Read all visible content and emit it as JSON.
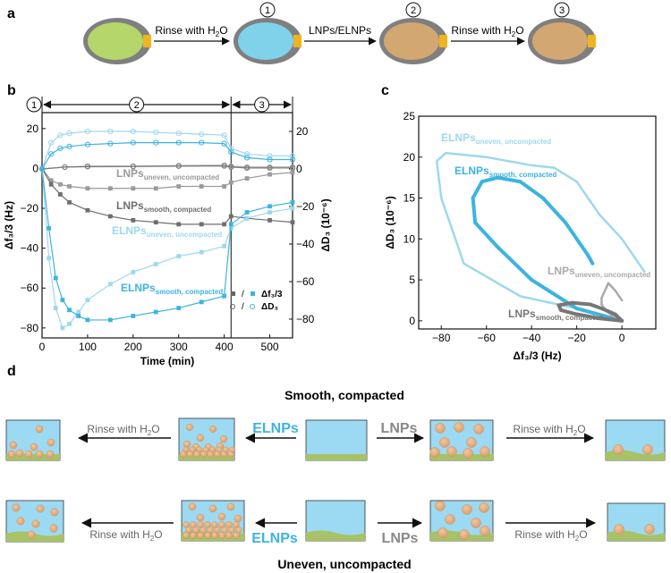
{
  "panels": {
    "a": "a",
    "b": "b",
    "c": "c",
    "d": "d"
  },
  "panel_a": {
    "steps": [
      {
        "label": "Rinse with H",
        "sub": "2",
        "tail": "O"
      },
      {
        "label": "LNPs/ELNPs",
        "sub": "",
        "tail": ""
      },
      {
        "label": "Rinse with H",
        "sub": "2",
        "tail": "O"
      }
    ],
    "markers": [
      "1",
      "2",
      "3"
    ]
  },
  "panel_d": {
    "title_top": "Smooth, compacted",
    "title_bottom": "Uneven, uncompacted",
    "rinse_main": "Rinse with H",
    "rinse_sub": "2",
    "rinse_tail": "O",
    "elnps": "ELNPs",
    "lnps": "LNPs"
  },
  "chart_data": [
    {
      "id": "b",
      "type": "line",
      "xlabel": "Time (min)",
      "ylabel_left": "Δf₃/3 (Hz)",
      "ylabel_right": "ΔD₃ (10⁻⁶)",
      "xlim": [
        0,
        550
      ],
      "ylim_left": [
        -85,
        28
      ],
      "ylim_right": [
        -90,
        30
      ],
      "xticks": [
        "0",
        "100",
        "200",
        "300",
        "400",
        "500"
      ],
      "yticks_left": [
        "20",
        "0",
        "−20",
        "−40",
        "−60",
        "−80"
      ],
      "yticks_right": [
        "20",
        "0",
        "−20",
        "−40",
        "−60",
        "−80"
      ],
      "stage_markers": [
        "1",
        "2",
        "3"
      ],
      "stage_bounds_min": [
        0,
        415,
        550
      ],
      "series": [
        {
          "name": "LNPs uneven, uncompacted Δf",
          "color": "#9a9a9a",
          "x": [
            0,
            20,
            40,
            60,
            100,
            150,
            200,
            250,
            300,
            350,
            400,
            415,
            450,
            500,
            550
          ],
          "y": [
            0,
            -6,
            -8,
            -9,
            -10,
            -10,
            -10,
            -10,
            -9,
            -9,
            -9,
            -7,
            -5,
            -3,
            -2
          ]
        },
        {
          "name": "LNPs smooth, compacted Δf",
          "color": "#6e6e6e",
          "x": [
            0,
            20,
            40,
            60,
            100,
            150,
            200,
            250,
            300,
            350,
            400,
            415,
            450,
            500,
            550
          ],
          "y": [
            0,
            -8,
            -13,
            -17,
            -21,
            -24,
            -26,
            -27,
            -28,
            -28,
            -28,
            -24,
            -25,
            -26,
            -27
          ]
        },
        {
          "name": "ELNPs uneven, uncompacted Δf",
          "color": "#9ed8ef",
          "x": [
            0,
            15,
            30,
            45,
            60,
            80,
            100,
            150,
            200,
            250,
            300,
            350,
            400,
            415,
            450,
            500,
            550
          ],
          "y": [
            0,
            -45,
            -70,
            -80,
            -78,
            -72,
            -66,
            -58,
            -52,
            -48,
            -44,
            -42,
            -39,
            -30,
            -25,
            -22,
            -20
          ]
        },
        {
          "name": "ELNPs smooth, compacted Δf",
          "color": "#3db3e0",
          "x": [
            0,
            15,
            30,
            45,
            60,
            80,
            100,
            150,
            200,
            250,
            300,
            350,
            400,
            415,
            450,
            500,
            550
          ],
          "y": [
            0,
            -30,
            -55,
            -66,
            -71,
            -74,
            -76,
            -76,
            -74,
            -72,
            -70,
            -67,
            -64,
            -28,
            -22,
            -19,
            -17
          ]
        },
        {
          "name": "LNPs uneven, uncompacted ΔD",
          "color": "#a8a8a8",
          "x": [
            0,
            50,
            100,
            200,
            300,
            400,
            415,
            450,
            500,
            550
          ],
          "y": [
            0,
            1,
            1.5,
            1.5,
            1.8,
            2,
            1.5,
            1,
            1,
            1
          ]
        },
        {
          "name": "LNPs smooth, compacted ΔD",
          "color": "#7a7a7a",
          "x": [
            0,
            50,
            100,
            200,
            300,
            400,
            415,
            450,
            500,
            550
          ],
          "y": [
            0,
            1,
            1.2,
            1.3,
            1.5,
            1.6,
            1,
            0.5,
            0.5,
            0.5
          ]
        },
        {
          "name": "ELNPs uneven, uncompacted ΔD",
          "color": "#9ed8ef",
          "x": [
            0,
            20,
            40,
            60,
            100,
            150,
            200,
            250,
            300,
            350,
            400,
            415,
            450,
            500,
            550
          ],
          "y": [
            0,
            14,
            18,
            19,
            20,
            20,
            20,
            19.5,
            19,
            18.5,
            18,
            11,
            8,
            7,
            7
          ]
        },
        {
          "name": "ELNPs smooth, compacted ΔD",
          "color": "#3db3e0",
          "x": [
            0,
            20,
            40,
            60,
            100,
            150,
            200,
            250,
            300,
            350,
            400,
            415,
            450,
            500,
            550
          ],
          "y": [
            0,
            8,
            11,
            12,
            13,
            13.5,
            14,
            14,
            14,
            14,
            13.5,
            9,
            6,
            5,
            5
          ]
        }
      ],
      "annotations": [
        {
          "main": "LNPs",
          "sub": "uneven, uncompacted"
        },
        {
          "main": "LNPs",
          "sub": "smooth, compacted"
        },
        {
          "main": "ELNPs",
          "sub": "uneven, uncompacted"
        },
        {
          "main": "ELNPs",
          "sub": "smooth, compacted"
        }
      ],
      "legend": [
        {
          "symbols": "■ / ■",
          "label": "Δf₃/3"
        },
        {
          "symbols": "○ / ○",
          "label": "ΔD₃"
        }
      ]
    },
    {
      "id": "c",
      "type": "scatter",
      "xlabel": "Δf₃/3 (Hz)",
      "ylabel": "ΔD₃ (10⁻⁶)",
      "xlim": [
        -90,
        15
      ],
      "ylim": [
        -1,
        25
      ],
      "xticks": [
        "−80",
        "−60",
        "−40",
        "−20",
        "0"
      ],
      "yticks": [
        "0",
        "5",
        "10",
        "15",
        "20",
        "25"
      ],
      "series": [
        {
          "name": "ELNPs uneven, uncompacted",
          "color": "#9ed8ef",
          "x": [
            0,
            -20,
            -45,
            -70,
            -80,
            -82,
            -78,
            -60,
            -40,
            -30,
            -20,
            -10,
            0,
            5,
            10
          ],
          "y": [
            0,
            1.5,
            3,
            7,
            15,
            19.5,
            20.5,
            20,
            19,
            18.7,
            17,
            13,
            10,
            8,
            6
          ]
        },
        {
          "name": "ELNPs smooth, compacted",
          "color": "#3db3e0",
          "x": [
            0,
            -20,
            -40,
            -55,
            -65,
            -66,
            -62,
            -55,
            -45,
            -35,
            -25,
            -15,
            -13
          ],
          "y": [
            0,
            1.5,
            5,
            9,
            12,
            15,
            17,
            17.5,
            17,
            15,
            12,
            8,
            7
          ]
        },
        {
          "name": "LNPs uneven, uncompacted",
          "color": "#aaaaaa",
          "x": [
            0,
            -4,
            -7,
            -9,
            -9,
            -6,
            -3,
            0
          ],
          "y": [
            0,
            0.6,
            1.2,
            2,
            2.8,
            4.6,
            3.7,
            2.5
          ]
        },
        {
          "name": "LNPs smooth, compacted",
          "color": "#777777",
          "x": [
            0,
            -10,
            -20,
            -27,
            -28,
            -22,
            -14,
            -8,
            -3,
            0
          ],
          "y": [
            0,
            0.3,
            0.8,
            1.3,
            1.9,
            2.2,
            2.0,
            1.4,
            0.8,
            0
          ]
        }
      ],
      "annotations": [
        {
          "main": "ELNPs",
          "sub": "uneven, uncompacted"
        },
        {
          "main": "ELNPs",
          "sub": "smooth, compacted"
        },
        {
          "main": "LNPs",
          "sub": "uneven, uncompacted"
        },
        {
          "main": "LNPs",
          "sub": "smooth, compacted"
        }
      ]
    }
  ]
}
